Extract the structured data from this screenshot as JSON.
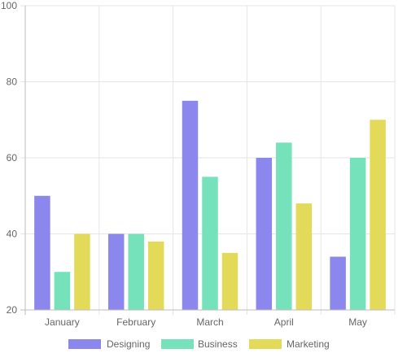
{
  "chart_data": {
    "type": "bar",
    "categories": [
      "January",
      "February",
      "March",
      "April",
      "May"
    ],
    "series": [
      {
        "name": "Designing",
        "color": "#8b87ec",
        "values": [
          50,
          40,
          75,
          60,
          34
        ]
      },
      {
        "name": "Business",
        "color": "#76e2bb",
        "values": [
          30,
          40,
          55,
          64,
          60
        ]
      },
      {
        "name": "Marketing",
        "color": "#e4da5a",
        "values": [
          40,
          38,
          35,
          48,
          70
        ]
      }
    ],
    "ylim": [
      20,
      100
    ],
    "yticks": [
      20,
      40,
      60,
      80,
      100
    ],
    "grid": true,
    "legend": "bottom",
    "gridline_color": "#e6e6e6",
    "axis_color": "#bdbdbd"
  }
}
